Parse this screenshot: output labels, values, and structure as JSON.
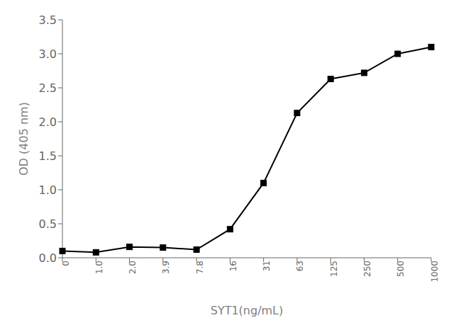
{
  "chart_data": {
    "type": "line",
    "xlabel": "SYT1(ng/mL)",
    "ylabel": "OD (405 nm)",
    "categories": [
      "0",
      "1.0",
      "2.0",
      "3.9",
      "7.8",
      "16",
      "31",
      "63",
      "125",
      "250",
      "500",
      "1000"
    ],
    "values": [
      0.1,
      0.08,
      0.16,
      0.15,
      0.12,
      0.42,
      1.1,
      2.13,
      2.63,
      2.72,
      3.0,
      3.1
    ],
    "color": "#000000",
    "marker": "square",
    "ylim": [
      0,
      3.5
    ],
    "yticks": [
      {
        "value": 0.0,
        "label": "0.0"
      },
      0.5,
      {
        "value": 1.0,
        "label": "1.0"
      },
      1.5,
      {
        "value": 2.0,
        "label": "2.0"
      },
      2.5,
      {
        "value": 3.0,
        "label": "3.0"
      },
      3.5
    ],
    "grid": false
  }
}
